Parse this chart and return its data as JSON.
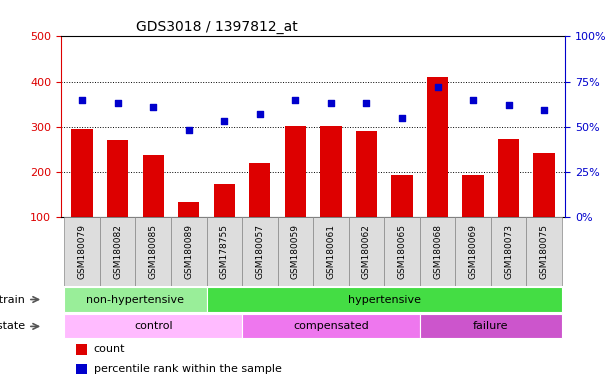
{
  "title": "GDS3018 / 1397812_at",
  "samples": [
    "GSM180079",
    "GSM180082",
    "GSM180085",
    "GSM180089",
    "GSM178755",
    "GSM180057",
    "GSM180059",
    "GSM180061",
    "GSM180062",
    "GSM180065",
    "GSM180068",
    "GSM180069",
    "GSM180073",
    "GSM180075"
  ],
  "counts": [
    295,
    270,
    238,
    133,
    173,
    220,
    302,
    302,
    290,
    192,
    410,
    192,
    272,
    242
  ],
  "percentiles": [
    65,
    63,
    61,
    48,
    53,
    57,
    65,
    63,
    63,
    55,
    72,
    65,
    62,
    59
  ],
  "ylim_left": [
    100,
    500
  ],
  "ylim_right": [
    0,
    100
  ],
  "yticks_left": [
    100,
    200,
    300,
    400,
    500
  ],
  "yticks_right": [
    0,
    25,
    50,
    75,
    100
  ],
  "bar_color": "#dd0000",
  "scatter_color": "#0000cc",
  "strain_segments": [
    {
      "label": "non-hypertensive",
      "start": 0,
      "end": 4,
      "color": "#99ee99"
    },
    {
      "label": "hypertensive",
      "start": 4,
      "end": 14,
      "color": "#44dd44"
    }
  ],
  "disease_segments": [
    {
      "label": "control",
      "start": 0,
      "end": 5,
      "color": "#ffbbff"
    },
    {
      "label": "compensated",
      "start": 5,
      "end": 10,
      "color": "#ee77ee"
    },
    {
      "label": "failure",
      "start": 10,
      "end": 14,
      "color": "#cc55cc"
    }
  ],
  "legend_items": [
    {
      "label": "count",
      "color": "#dd0000"
    },
    {
      "label": "percentile rank within the sample",
      "color": "#0000cc"
    }
  ],
  "tick_label_color_left": "#dd0000",
  "tick_label_color_right": "#0000cc",
  "sample_bg_color": "#dddddd",
  "sample_bg_edge_color": "#888888"
}
